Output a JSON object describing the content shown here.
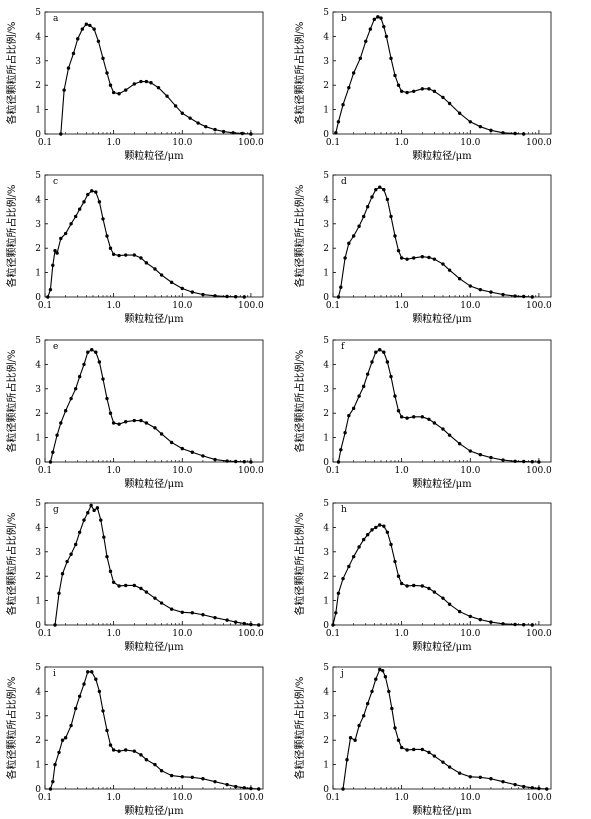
{
  "figure": {
    "x_axis_title": "颗粒粒径/μm",
    "y_axis_title": "各粒径颗粒所占比例/%"
  },
  "chart_data": [
    {
      "type": "line",
      "panel": "a",
      "xlabel": "颗粒粒径/μm",
      "ylabel": "各粒径颗粒所占比例/%",
      "x_scale": "log",
      "xlim": [
        0.1,
        150
      ],
      "ylim": [
        0,
        5
      ],
      "x_ticks": [
        "0.1",
        "1.0",
        "10.0",
        "100.0"
      ],
      "y_ticks": [
        "0",
        "1",
        "2",
        "3",
        "4",
        "5"
      ],
      "series": [
        {
          "x": [
            0.17,
            0.19,
            0.22,
            0.26,
            0.3,
            0.35,
            0.4,
            0.45,
            0.52,
            0.6,
            0.7,
            0.8,
            0.9,
            1.0,
            1.2,
            1.5,
            2.0,
            2.5,
            3.0,
            3.5,
            4.5,
            6.0,
            8.0,
            10.0,
            13.0,
            17.0,
            22.0,
            30.0,
            40.0,
            55.0,
            75.0,
            100.0
          ],
          "y": [
            0.0,
            1.8,
            2.7,
            3.3,
            3.9,
            4.3,
            4.5,
            4.45,
            4.3,
            3.8,
            3.1,
            2.5,
            2.0,
            1.7,
            1.65,
            1.8,
            2.05,
            2.15,
            2.15,
            2.1,
            1.9,
            1.55,
            1.15,
            0.85,
            0.65,
            0.45,
            0.3,
            0.18,
            0.1,
            0.05,
            0.02,
            0.0
          ]
        }
      ]
    },
    {
      "type": "line",
      "panel": "b",
      "xlabel": "颗粒粒径/μm",
      "ylabel": "各粒径颗粒所占比例/%",
      "x_scale": "log",
      "xlim": [
        0.1,
        150
      ],
      "ylim": [
        0,
        5
      ],
      "x_ticks": [
        "0.1",
        "1.0",
        "10.0",
        "100.0"
      ],
      "y_ticks": [
        "0",
        "1",
        "2",
        "3",
        "4",
        "5"
      ],
      "series": [
        {
          "x": [
            0.11,
            0.12,
            0.14,
            0.17,
            0.2,
            0.25,
            0.3,
            0.35,
            0.4,
            0.45,
            0.5,
            0.55,
            0.6,
            0.7,
            0.8,
            0.9,
            1.0,
            1.2,
            1.5,
            2.0,
            2.5,
            3.0,
            4.0,
            5.0,
            7.0,
            10.0,
            14.0,
            20.0,
            30.0,
            45.0,
            60.0
          ],
          "y": [
            0.05,
            0.5,
            1.2,
            1.9,
            2.5,
            3.1,
            3.8,
            4.3,
            4.7,
            4.8,
            4.75,
            4.4,
            4.0,
            3.1,
            2.4,
            2.0,
            1.75,
            1.7,
            1.75,
            1.85,
            1.85,
            1.75,
            1.5,
            1.25,
            0.85,
            0.5,
            0.3,
            0.15,
            0.05,
            0.02,
            0.0
          ]
        }
      ]
    },
    {
      "type": "line",
      "panel": "c",
      "xlabel": "颗粒粒径/μm",
      "ylabel": "各粒径颗粒所占比例/%",
      "x_scale": "log",
      "xlim": [
        0.1,
        150
      ],
      "ylim": [
        0,
        5
      ],
      "x_ticks": [
        "0.1",
        "1.0",
        "10.0",
        "100.0"
      ],
      "y_ticks": [
        "0",
        "1",
        "2",
        "3",
        "4",
        "5"
      ],
      "series": [
        {
          "x": [
            0.11,
            0.12,
            0.13,
            0.14,
            0.15,
            0.17,
            0.2,
            0.24,
            0.28,
            0.32,
            0.37,
            0.42,
            0.48,
            0.55,
            0.62,
            0.7,
            0.8,
            0.9,
            1.0,
            1.2,
            1.5,
            2.0,
            2.5,
            3.0,
            4.0,
            5.0,
            7.0,
            10.0,
            14.0,
            20.0,
            30.0,
            45.0,
            60.0,
            80.0
          ],
          "y": [
            0.0,
            0.3,
            1.3,
            1.9,
            1.8,
            2.4,
            2.6,
            3.0,
            3.3,
            3.6,
            3.9,
            4.2,
            4.35,
            4.3,
            3.9,
            3.2,
            2.5,
            2.0,
            1.75,
            1.7,
            1.72,
            1.72,
            1.6,
            1.4,
            1.15,
            0.9,
            0.6,
            0.35,
            0.2,
            0.1,
            0.05,
            0.02,
            0.01,
            0.0
          ]
        }
      ]
    },
    {
      "type": "line",
      "panel": "d",
      "xlabel": "颗粒粒径/μm",
      "ylabel": "各粒径颗粒所占比例/%",
      "x_scale": "log",
      "xlim": [
        0.1,
        150
      ],
      "ylim": [
        0,
        5
      ],
      "x_ticks": [
        "0.1",
        "1.0",
        "10.0",
        "100.0"
      ],
      "y_ticks": [
        "0",
        "1",
        "2",
        "3",
        "4",
        "5"
      ],
      "series": [
        {
          "x": [
            0.12,
            0.13,
            0.15,
            0.17,
            0.2,
            0.24,
            0.28,
            0.32,
            0.37,
            0.42,
            0.48,
            0.55,
            0.62,
            0.7,
            0.8,
            0.9,
            1.0,
            1.2,
            1.5,
            2.0,
            2.5,
            3.0,
            4.0,
            5.0,
            7.0,
            10.0,
            14.0,
            20.0,
            30.0,
            45.0,
            60.0,
            80.0
          ],
          "y": [
            0.0,
            0.4,
            1.6,
            2.2,
            2.5,
            2.9,
            3.3,
            3.7,
            4.1,
            4.4,
            4.5,
            4.4,
            4.0,
            3.3,
            2.5,
            1.9,
            1.6,
            1.55,
            1.6,
            1.65,
            1.62,
            1.55,
            1.35,
            1.1,
            0.75,
            0.45,
            0.3,
            0.2,
            0.1,
            0.04,
            0.02,
            0.0
          ]
        }
      ]
    },
    {
      "type": "line",
      "panel": "e",
      "xlabel": "颗粒粒径/μm",
      "ylabel": "各粒径颗粒所占比例/%",
      "x_scale": "log",
      "xlim": [
        0.1,
        150
      ],
      "ylim": [
        0,
        5
      ],
      "x_ticks": [
        "0.1",
        "1.0",
        "10.0",
        "100.0"
      ],
      "y_ticks": [
        "0",
        "1",
        "2",
        "3",
        "4",
        "5"
      ],
      "series": [
        {
          "x": [
            0.12,
            0.13,
            0.15,
            0.17,
            0.2,
            0.24,
            0.28,
            0.32,
            0.37,
            0.42,
            0.48,
            0.55,
            0.62,
            0.7,
            0.8,
            0.9,
            1.0,
            1.2,
            1.5,
            2.0,
            2.5,
            3.0,
            4.0,
            5.0,
            7.0,
            10.0,
            14.0,
            20.0,
            30.0,
            45.0,
            60.0,
            80.0,
            100.0
          ],
          "y": [
            0.0,
            0.4,
            1.1,
            1.6,
            2.1,
            2.6,
            3.0,
            3.5,
            4.0,
            4.5,
            4.6,
            4.5,
            4.1,
            3.4,
            2.6,
            2.0,
            1.6,
            1.55,
            1.65,
            1.7,
            1.7,
            1.6,
            1.4,
            1.15,
            0.8,
            0.55,
            0.4,
            0.25,
            0.1,
            0.04,
            0.02,
            0.01,
            0.0
          ]
        }
      ]
    },
    {
      "type": "line",
      "panel": "f",
      "xlabel": "颗粒粒径/μm",
      "ylabel": "各粒径颗粒所占比例/%",
      "x_scale": "log",
      "xlim": [
        0.1,
        150
      ],
      "ylim": [
        0,
        5
      ],
      "x_ticks": [
        "0.1",
        "1.0",
        "10.0",
        "100.0"
      ],
      "y_ticks": [
        "0",
        "1",
        "2",
        "3",
        "4",
        "5"
      ],
      "series": [
        {
          "x": [
            0.12,
            0.13,
            0.15,
            0.17,
            0.2,
            0.24,
            0.28,
            0.32,
            0.37,
            0.42,
            0.48,
            0.55,
            0.62,
            0.7,
            0.8,
            0.9,
            1.0,
            1.2,
            1.5,
            2.0,
            2.5,
            3.0,
            4.0,
            5.0,
            7.0,
            10.0,
            14.0,
            20.0,
            30.0,
            45.0,
            60.0,
            80.0,
            100.0
          ],
          "y": [
            0.0,
            0.5,
            1.2,
            1.9,
            2.2,
            2.7,
            3.1,
            3.6,
            4.1,
            4.5,
            4.6,
            4.5,
            4.1,
            3.5,
            2.7,
            2.1,
            1.85,
            1.8,
            1.85,
            1.85,
            1.75,
            1.6,
            1.35,
            1.1,
            0.75,
            0.45,
            0.3,
            0.18,
            0.08,
            0.03,
            0.02,
            0.01,
            0.0
          ]
        }
      ]
    },
    {
      "type": "line",
      "panel": "g",
      "xlabel": "颗粒粒径/μm",
      "ylabel": "各粒径颗粒所占比例/%",
      "x_scale": "log",
      "xlim": [
        0.1,
        150
      ],
      "ylim": [
        0,
        5
      ],
      "x_ticks": [
        "0.1",
        "1.0",
        "10.0",
        "100.0"
      ],
      "y_ticks": [
        "0",
        "1",
        "2",
        "3",
        "4",
        "5"
      ],
      "series": [
        {
          "x": [
            0.14,
            0.16,
            0.18,
            0.21,
            0.24,
            0.28,
            0.32,
            0.37,
            0.42,
            0.47,
            0.52,
            0.58,
            0.65,
            0.72,
            0.8,
            0.9,
            1.0,
            1.2,
            1.5,
            2.0,
            2.5,
            3.0,
            4.0,
            5.0,
            7.0,
            10.0,
            14.0,
            20.0,
            30.0,
            45.0,
            60.0,
            80.0,
            100.0,
            130.0
          ],
          "y": [
            0.0,
            1.3,
            2.1,
            2.6,
            2.9,
            3.3,
            3.8,
            4.3,
            4.6,
            4.9,
            4.7,
            4.8,
            4.3,
            3.6,
            2.8,
            2.2,
            1.75,
            1.6,
            1.62,
            1.62,
            1.5,
            1.35,
            1.1,
            0.9,
            0.65,
            0.52,
            0.5,
            0.42,
            0.3,
            0.2,
            0.12,
            0.06,
            0.02,
            0.0
          ]
        }
      ]
    },
    {
      "type": "line",
      "panel": "h",
      "xlabel": "颗粒粒径/μm",
      "ylabel": "各粒径颗粒所占比例/%",
      "x_scale": "log",
      "xlim": [
        0.1,
        150
      ],
      "ylim": [
        0,
        5
      ],
      "x_ticks": [
        "0.1",
        "1.0",
        "10.0",
        "100.0"
      ],
      "y_ticks": [
        "0",
        "1",
        "2",
        "3",
        "4",
        "5"
      ],
      "series": [
        {
          "x": [
            0.1,
            0.11,
            0.12,
            0.14,
            0.17,
            0.2,
            0.24,
            0.28,
            0.32,
            0.37,
            0.42,
            0.48,
            0.55,
            0.62,
            0.7,
            0.8,
            0.9,
            1.0,
            1.2,
            1.5,
            2.0,
            2.5,
            3.0,
            4.0,
            5.0,
            7.0,
            10.0,
            14.0,
            20.0,
            30.0,
            45.0,
            60.0,
            80.0
          ],
          "y": [
            0.0,
            0.5,
            1.3,
            1.9,
            2.4,
            2.8,
            3.2,
            3.5,
            3.7,
            3.9,
            4.0,
            4.1,
            4.05,
            3.8,
            3.3,
            2.6,
            2.0,
            1.7,
            1.6,
            1.62,
            1.6,
            1.5,
            1.35,
            1.1,
            0.85,
            0.55,
            0.35,
            0.22,
            0.12,
            0.05,
            0.02,
            0.01,
            0.0
          ]
        }
      ]
    },
    {
      "type": "line",
      "panel": "i",
      "xlabel": "颗粒粒径/μm",
      "ylabel": "各粒径颗粒所占比例/%",
      "x_scale": "log",
      "xlim": [
        0.1,
        150
      ],
      "ylim": [
        0,
        5
      ],
      "x_ticks": [
        "0.1",
        "1.0",
        "10.0",
        "100.0"
      ],
      "y_ticks": [
        "0",
        "1",
        "2",
        "3",
        "4",
        "5"
      ],
      "series": [
        {
          "x": [
            0.12,
            0.13,
            0.14,
            0.16,
            0.18,
            0.2,
            0.24,
            0.28,
            0.32,
            0.37,
            0.42,
            0.48,
            0.55,
            0.62,
            0.7,
            0.8,
            0.9,
            1.0,
            1.2,
            1.5,
            2.0,
            2.5,
            3.0,
            4.0,
            5.0,
            7.0,
            10.0,
            14.0,
            20.0,
            30.0,
            45.0,
            60.0,
            80.0,
            100.0,
            130.0
          ],
          "y": [
            0.0,
            0.3,
            1.0,
            1.5,
            2.0,
            2.1,
            2.6,
            3.3,
            3.8,
            4.3,
            4.8,
            4.8,
            4.5,
            4.0,
            3.2,
            2.4,
            1.8,
            1.6,
            1.55,
            1.6,
            1.55,
            1.4,
            1.2,
            1.0,
            0.75,
            0.55,
            0.5,
            0.48,
            0.42,
            0.3,
            0.18,
            0.1,
            0.05,
            0.02,
            0.0
          ]
        }
      ]
    },
    {
      "type": "line",
      "panel": "j",
      "xlabel": "颗粒粒径/μm",
      "ylabel": "各粒径颗粒所占比例/%",
      "x_scale": "log",
      "xlim": [
        0.1,
        150
      ],
      "ylim": [
        0,
        5
      ],
      "x_ticks": [
        "0.1",
        "1.0",
        "10.0",
        "100.0"
      ],
      "y_ticks": [
        "0",
        "1",
        "2",
        "3",
        "4",
        "5"
      ],
      "series": [
        {
          "x": [
            0.14,
            0.16,
            0.18,
            0.21,
            0.24,
            0.28,
            0.32,
            0.37,
            0.42,
            0.48,
            0.53,
            0.58,
            0.65,
            0.72,
            0.8,
            0.9,
            1.0,
            1.2,
            1.5,
            2.0,
            2.5,
            3.0,
            4.0,
            5.0,
            7.0,
            10.0,
            14.0,
            20.0,
            30.0,
            45.0,
            60.0,
            80.0,
            100.0,
            130.0
          ],
          "y": [
            0.0,
            1.2,
            2.1,
            2.0,
            2.6,
            3.0,
            3.5,
            4.0,
            4.5,
            4.9,
            4.85,
            4.6,
            4.0,
            3.3,
            2.5,
            2.0,
            1.7,
            1.6,
            1.62,
            1.62,
            1.5,
            1.35,
            1.1,
            0.9,
            0.65,
            0.5,
            0.48,
            0.42,
            0.3,
            0.18,
            0.1,
            0.05,
            0.02,
            0.0
          ]
        }
      ]
    }
  ]
}
